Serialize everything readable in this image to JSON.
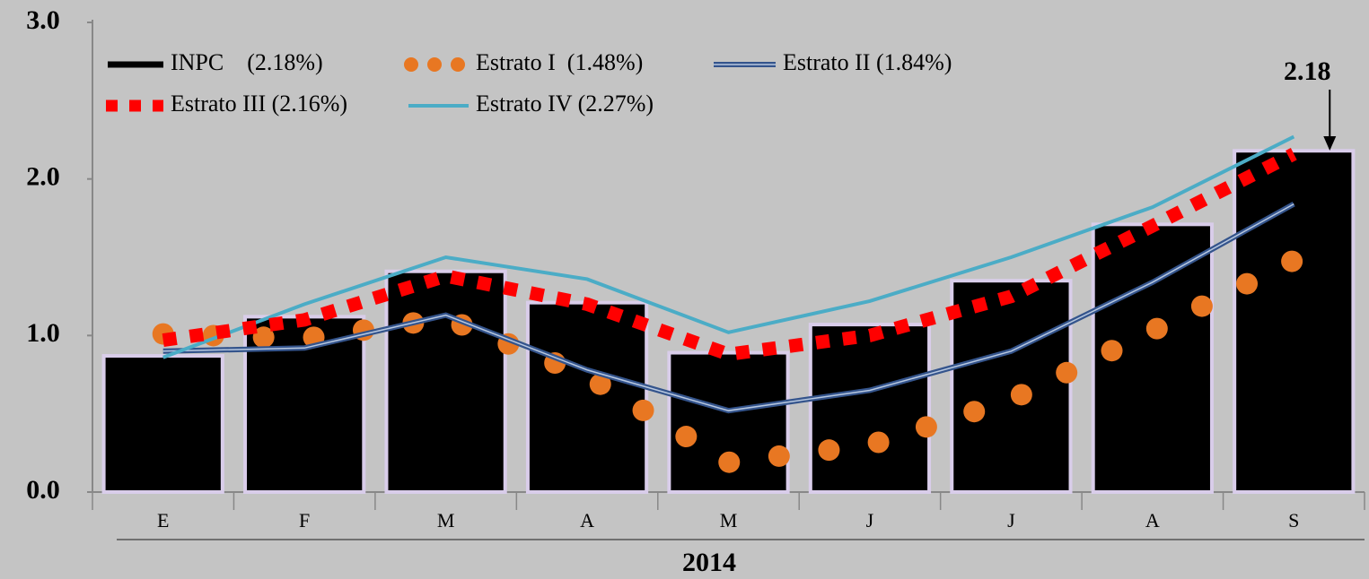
{
  "chart_data": {
    "type": "bar",
    "categories": [
      "E",
      "F",
      "M",
      "A",
      "M",
      "J",
      "J",
      "A",
      "S"
    ],
    "xlabel": "2014",
    "ylim": [
      0,
      3
    ],
    "yticks": [
      {
        "value": 0,
        "label": "0.0"
      },
      {
        "value": 1,
        "label": "1.0"
      },
      {
        "value": 2,
        "label": "2.0"
      },
      {
        "value": 3,
        "label": "3.0"
      }
    ],
    "grid": false,
    "series": [
      {
        "name": "INPC    (2.18%)",
        "kind": "bar",
        "color": "#000000",
        "values": [
          0.87,
          1.12,
          1.41,
          1.21,
          0.89,
          1.07,
          1.35,
          1.71,
          2.18
        ]
      },
      {
        "name": "Estrato I  (1.48%)",
        "kind": "dotted",
        "color": "#e87722",
        "values": [
          1.01,
          0.98,
          1.11,
          0.74,
          0.19,
          0.3,
          0.59,
          1.03,
          1.48
        ]
      },
      {
        "name": "Estrato II (1.84%)",
        "kind": "double",
        "color": "#34548c",
        "values": [
          0.9,
          0.92,
          1.13,
          0.78,
          0.52,
          0.65,
          0.9,
          1.34,
          1.84
        ]
      },
      {
        "name": "Estrato III (2.16%)",
        "kind": "dashed",
        "color": "#ff0000",
        "values": [
          0.97,
          1.1,
          1.38,
          1.2,
          0.88,
          1.0,
          1.25,
          1.7,
          2.16
        ]
      },
      {
        "name": "Estrato IV (2.27%)",
        "kind": "solid",
        "color": "#4bacc6",
        "values": [
          0.86,
          1.2,
          1.5,
          1.36,
          1.02,
          1.22,
          1.5,
          1.82,
          2.27
        ]
      }
    ]
  }
}
